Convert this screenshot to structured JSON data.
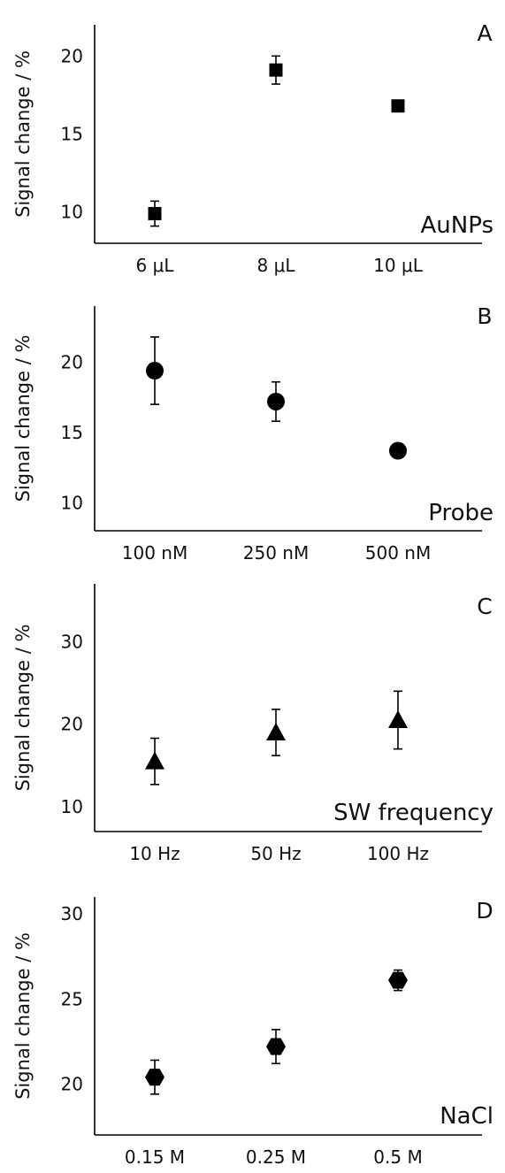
{
  "chart_data": [
    {
      "type": "scatter",
      "panel_letter": "A",
      "annotation": "AuNPs",
      "ylabel": "Signal change / %",
      "categories": [
        "6 μL",
        "8 μL",
        "10 μL"
      ],
      "marker": "square",
      "ylim": [
        8,
        22
      ],
      "yticks": [
        10,
        15,
        20
      ],
      "values": [
        9.9,
        19.1,
        16.8
      ],
      "errors": [
        0.8,
        0.9,
        0.3
      ]
    },
    {
      "type": "scatter",
      "panel_letter": "B",
      "annotation": "Probe",
      "ylabel": "Signal change / %",
      "categories": [
        "100 nM",
        "250 nM",
        "500 nM"
      ],
      "marker": "circle",
      "ylim": [
        8,
        24
      ],
      "yticks": [
        10,
        15,
        20
      ],
      "values": [
        19.4,
        17.2,
        13.7
      ],
      "errors": [
        2.4,
        1.4,
        0.5
      ]
    },
    {
      "type": "scatter",
      "panel_letter": "C",
      "annotation": "SW frequency",
      "ylabel": "Signal change / %",
      "categories": [
        "10 Hz",
        "50 Hz",
        "100 Hz"
      ],
      "marker": "triangle",
      "ylim": [
        7,
        37
      ],
      "yticks": [
        10,
        20,
        30
      ],
      "values": [
        15.5,
        19.0,
        20.5
      ],
      "errors": [
        2.8,
        2.8,
        3.5
      ]
    },
    {
      "type": "scatter",
      "panel_letter": "D",
      "annotation": "NaCl",
      "ylabel": "Signal change / %",
      "categories": [
        "0.15 M",
        "0.25 M",
        "0.5 M"
      ],
      "marker": "hexagon",
      "ylim": [
        17,
        31
      ],
      "yticks": [
        20,
        25,
        30
      ],
      "values": [
        20.4,
        22.2,
        26.1
      ],
      "errors": [
        1.0,
        1.0,
        0.6
      ]
    }
  ]
}
